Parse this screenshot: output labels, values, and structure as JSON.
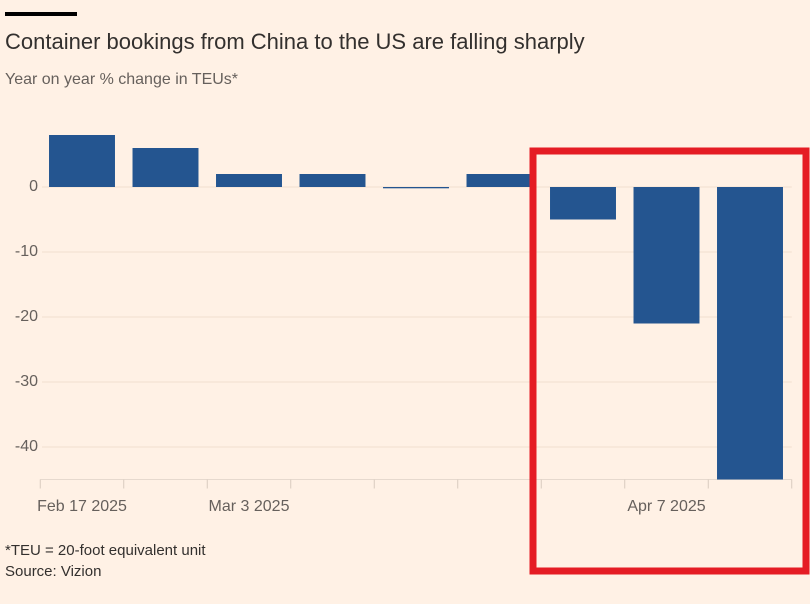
{
  "chart_data": {
    "type": "bar",
    "title": "Container bookings from China to the US are falling sharply",
    "subtitle": "Year on year % change in TEUs*",
    "categories": [
      "Feb 17 2025",
      null,
      "Mar 3 2025",
      null,
      null,
      null,
      null,
      "Apr 7 2025",
      null
    ],
    "values": [
      8,
      6,
      2,
      2,
      -0.2,
      2,
      -5,
      -21,
      -45
    ],
    "color": "#245590",
    "ylim": [
      -45,
      10
    ],
    "yticks": [
      0,
      -10,
      -20,
      -30,
      -40
    ],
    "grid": true,
    "footnote": "*TEU = 20-foot equivalent unit",
    "source": "Source: Vizion"
  }
}
